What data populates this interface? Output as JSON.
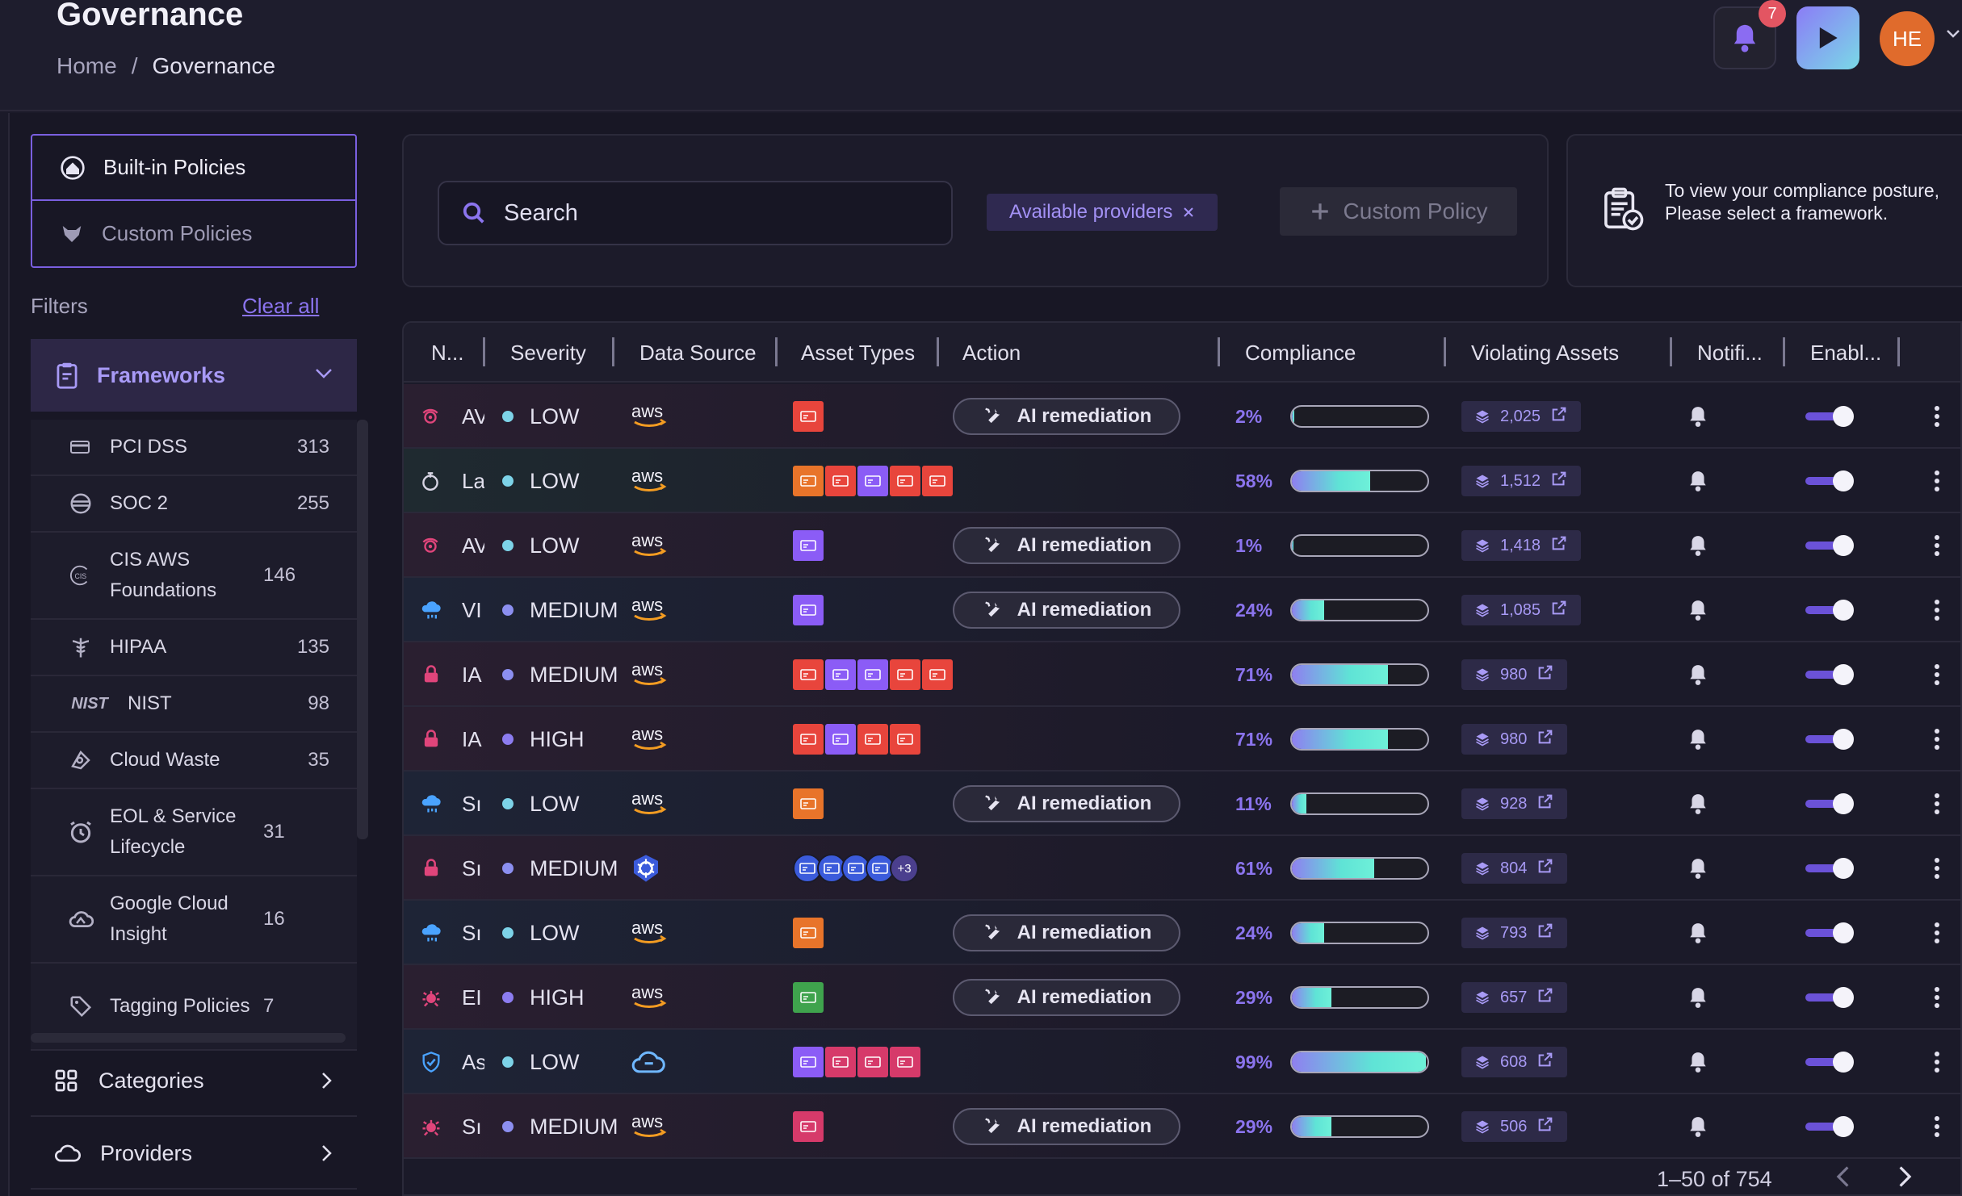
{
  "header": {
    "title": "Governance",
    "breadcrumb": [
      "Home",
      "/",
      "Governance"
    ],
    "notifications_count": "7",
    "avatar_initials": "HE"
  },
  "sidebar": {
    "policy_tabs": [
      {
        "label": "Built-in Policies",
        "icon": "home-shield-icon",
        "active": true
      },
      {
        "label": "Custom Policies",
        "icon": "fox-icon",
        "active": false
      }
    ],
    "filters_label": "Filters",
    "clear_all": "Clear all",
    "frameworks": {
      "label": "Frameworks",
      "items": [
        {
          "label": "PCI DSS",
          "count": "313",
          "icon": "card-icon"
        },
        {
          "label": "SOC 2",
          "count": "255",
          "icon": "soc-icon"
        },
        {
          "label": "CIS AWS Foundations",
          "count": "146",
          "icon": "cis-icon"
        },
        {
          "label": "HIPAA",
          "count": "135",
          "icon": "caduceus-icon"
        },
        {
          "label": "NIST",
          "count": "98",
          "icon": "nist-icon",
          "icon_text": "NIST"
        },
        {
          "label": "Cloud Waste",
          "count": "35",
          "icon": "cloud-waste-icon"
        },
        {
          "label": "EOL & Service Lifecycle",
          "count": "31",
          "icon": "alarm-clock-icon"
        },
        {
          "label": "Google Cloud Insight",
          "count": "16",
          "icon": "google-cloud-icon"
        },
        {
          "label": "Tagging Policies",
          "count": "7",
          "icon": "tag-icon"
        }
      ]
    },
    "nav": [
      {
        "label": "Categories",
        "icon": "grid-icon"
      },
      {
        "label": "Providers",
        "icon": "cloud-icon"
      }
    ]
  },
  "search": {
    "placeholder": "Search",
    "provider_chip": "Available providers",
    "custom_policy": "Custom Policy"
  },
  "compliance_hint": {
    "line1": "To view your compliance posture,",
    "line2": "Please select a framework."
  },
  "table": {
    "columns": [
      "N...",
      "Severity",
      "Data Source",
      "Asset Types",
      "Action",
      "Compliance",
      "Violating Assets",
      "Notifi...",
      "Enabl..."
    ],
    "action_label": "AI remediation",
    "rows": [
      {
        "name": "AV",
        "severity": "LOW",
        "source": "aws",
        "icon_color": "#e0457b",
        "compliance": "2%",
        "pct": 2,
        "violating": "2,025",
        "ai": true,
        "assets": [
          "#e8453c"
        ]
      },
      {
        "name": "La",
        "severity": "LOW",
        "source": "aws",
        "icon_color": "#d7d5e4",
        "compliance": "58%",
        "pct": 58,
        "violating": "1,512",
        "ai": false,
        "assets": [
          "#e8742a",
          "#e8453c",
          "#8b5cf6",
          "#e8453c",
          "#e8453c"
        ]
      },
      {
        "name": "AV",
        "severity": "LOW",
        "source": "aws",
        "icon_color": "#e0457b",
        "compliance": "1%",
        "pct": 1,
        "violating": "1,418",
        "ai": true,
        "assets": [
          "#8b5cf6"
        ]
      },
      {
        "name": "VI",
        "severity": "MEDIUM",
        "source": "aws",
        "icon_color": "#4aa3ff",
        "compliance": "24%",
        "pct": 24,
        "violating": "1,085",
        "ai": true,
        "assets": [
          "#8b5cf6"
        ]
      },
      {
        "name": "IA",
        "severity": "MEDIUM",
        "source": "aws",
        "icon_color": "#e0457b",
        "compliance": "71%",
        "pct": 71,
        "violating": "980",
        "ai": false,
        "assets": [
          "#e8453c",
          "#8b5cf6",
          "#8b5cf6",
          "#e8453c",
          "#e8453c"
        ]
      },
      {
        "name": "IA",
        "severity": "HIGH",
        "source": "aws",
        "icon_color": "#e0457b",
        "compliance": "71%",
        "pct": 71,
        "violating": "980",
        "ai": false,
        "assets": [
          "#e8453c",
          "#8b5cf6",
          "#e8453c",
          "#e8453c"
        ]
      },
      {
        "name": "Sı",
        "severity": "LOW",
        "source": "aws",
        "icon_color": "#4aa3ff",
        "compliance": "11%",
        "pct": 11,
        "violating": "928",
        "ai": true,
        "assets": [
          "#e8742a"
        ]
      },
      {
        "name": "Sı",
        "severity": "MEDIUM",
        "source": "kubernetes",
        "icon_color": "#e0457b",
        "compliance": "61%",
        "pct": 61,
        "violating": "804",
        "ai": false,
        "assets": [
          "#3b5bdb",
          "#3b5bdb",
          "#3b5bdb",
          "#3b5bdb"
        ],
        "more": "+3"
      },
      {
        "name": "Sı",
        "severity": "LOW",
        "source": "aws",
        "icon_color": "#4aa3ff",
        "compliance": "24%",
        "pct": 24,
        "violating": "793",
        "ai": true,
        "assets": [
          "#e8742a"
        ]
      },
      {
        "name": "EI",
        "severity": "HIGH",
        "source": "aws",
        "icon_color": "#e0457b",
        "compliance": "29%",
        "pct": 29,
        "violating": "657",
        "ai": true,
        "assets": [
          "#3fa34d"
        ]
      },
      {
        "name": "As",
        "severity": "LOW",
        "source": "cloud",
        "icon_color": "#4aa3ff",
        "compliance": "99%",
        "pct": 99,
        "violating": "608",
        "ai": false,
        "assets": [
          "#8b5cf6",
          "#d63a6a",
          "#d63a6a",
          "#d63a6a"
        ]
      },
      {
        "name": "Sı",
        "severity": "MEDIUM",
        "source": "aws",
        "icon_color": "#e0457b",
        "compliance": "29%",
        "pct": 29,
        "violating": "506",
        "ai": true,
        "assets": [
          "#d63a6a"
        ]
      }
    ]
  },
  "pagination": {
    "label": "1–50 of 754"
  },
  "colors": {
    "accent": "#7a5fe0",
    "low": "#7dd3e8",
    "medium": "#8c8ff0",
    "high": "#8c7cf0"
  }
}
